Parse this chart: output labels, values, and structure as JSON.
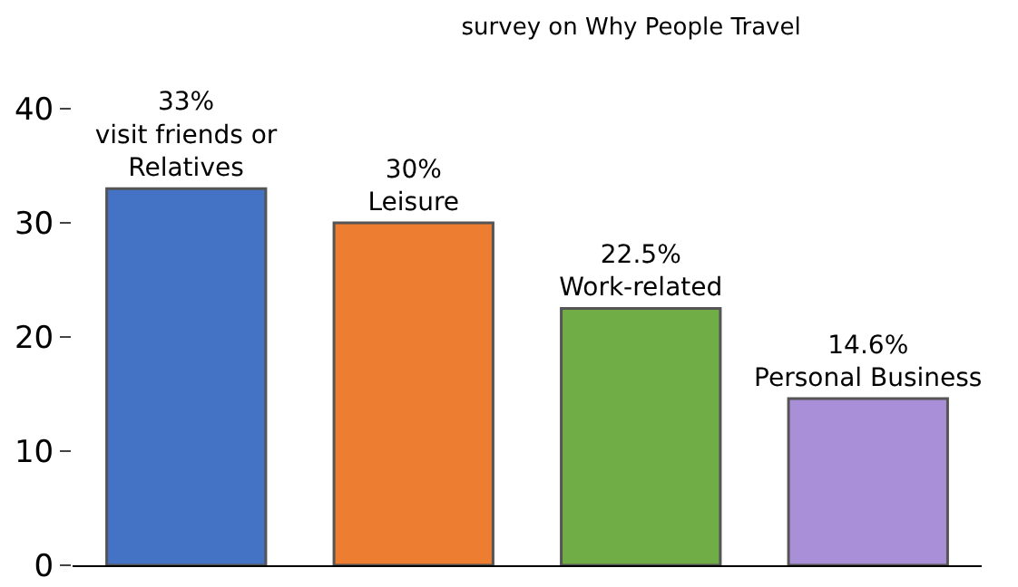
{
  "chart_data": {
    "type": "bar",
    "title": "survey on Why People Travel",
    "categories": [
      "visit friends or Relatives",
      "Leisure",
      "Work-related",
      "Personal Business"
    ],
    "values": [
      33,
      30,
      22.5,
      14.6
    ],
    "value_labels": [
      "33%",
      "30%",
      "22.5%",
      "14.6%"
    ],
    "colors": [
      "#4472c4",
      "#ed7d31",
      "#70ad47",
      "#a98fd8"
    ],
    "ylim": [
      0,
      40
    ],
    "yticks": [
      0,
      10,
      20,
      30,
      40
    ],
    "grid": false,
    "tick_labels": "y"
  }
}
